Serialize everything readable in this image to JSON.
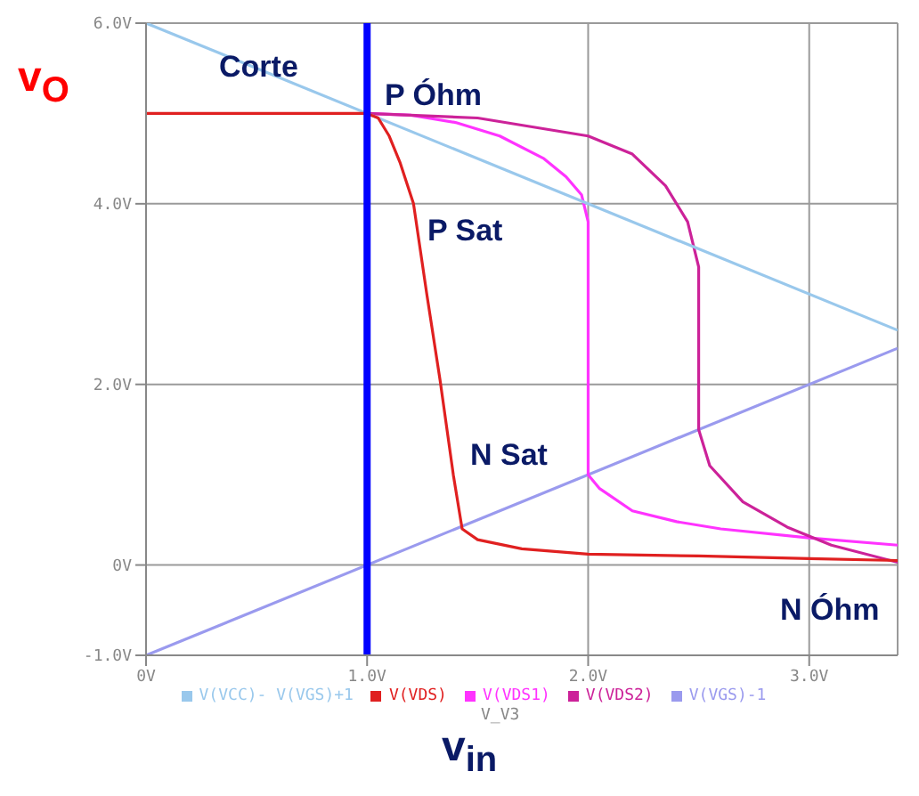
{
  "chart_data": {
    "type": "line",
    "xlabel": "v$_{in}$",
    "ylabel": "v$_{O}$",
    "xlim": [
      0,
      3.4
    ],
    "ylim": [
      -1,
      6
    ],
    "xticks": [
      {
        "value": 0,
        "label": "0V"
      },
      {
        "value": 1,
        "label": "1.0V"
      },
      {
        "value": 2,
        "label": "2.0V"
      },
      {
        "value": 3,
        "label": "3.0V"
      }
    ],
    "yticks": [
      {
        "value": -1,
        "label": "-1.0V"
      },
      {
        "value": 0,
        "label": "0V"
      },
      {
        "value": 2,
        "label": "2.0V"
      },
      {
        "value": 4,
        "label": "4.0V"
      },
      {
        "value": 6,
        "label": "6.0V"
      }
    ],
    "grid": true,
    "legend": "bottom",
    "series": [
      {
        "name": "V(VDS)",
        "color": "#e02020",
        "x": [
          0,
          0.5,
          1.0,
          1.05,
          1.1,
          1.15,
          1.21,
          1.27,
          1.33,
          1.39,
          1.43,
          1.5,
          1.7,
          2.0,
          2.5,
          3.0,
          3.4
        ],
        "values": [
          5,
          5,
          5,
          4.95,
          4.75,
          4.45,
          4.0,
          3.0,
          2.05,
          1.0,
          0.4,
          0.28,
          0.18,
          0.12,
          0.1,
          0.07,
          0.05
        ]
      },
      {
        "name": "V(VGS)-1",
        "color": "#9a9aee",
        "x": [
          0,
          3.4
        ],
        "values": [
          -1,
          2.4
        ]
      },
      {
        "name": "V(VDS1)",
        "color": "#ff33ff",
        "x": [
          1.0,
          1.2,
          1.4,
          1.6,
          1.8,
          1.9,
          1.97,
          2.0,
          2.0,
          2.05,
          2.2,
          2.4,
          2.6,
          3.0,
          3.4
        ],
        "values": [
          5,
          4.98,
          4.9,
          4.75,
          4.5,
          4.3,
          4.1,
          3.8,
          1.0,
          0.85,
          0.6,
          0.48,
          0.4,
          0.3,
          0.22
        ]
      },
      {
        "name": "V(VDS2)",
        "color": "#cc2299",
        "x": [
          1.0,
          1.5,
          2.0,
          2.2,
          2.35,
          2.45,
          2.5,
          2.5,
          2.55,
          2.7,
          2.9,
          3.1,
          3.4
        ],
        "values": [
          5,
          4.95,
          4.75,
          4.55,
          4.2,
          3.8,
          3.3,
          1.5,
          1.1,
          0.7,
          0.42,
          0.22,
          0.03
        ]
      },
      {
        "name": "V(VCC)- V(VGS)+1",
        "color": "#99c8ec",
        "x": [
          0,
          3.4
        ],
        "values": [
          6,
          2.6
        ]
      }
    ],
    "ref_lines": [
      {
        "axis": "x",
        "value": 1,
        "color": "#0000ff"
      }
    ],
    "annotations": [
      "Corte",
      "P Óhm",
      "P Sat",
      "N Sat",
      "N Óhm",
      "V_V3"
    ]
  }
}
